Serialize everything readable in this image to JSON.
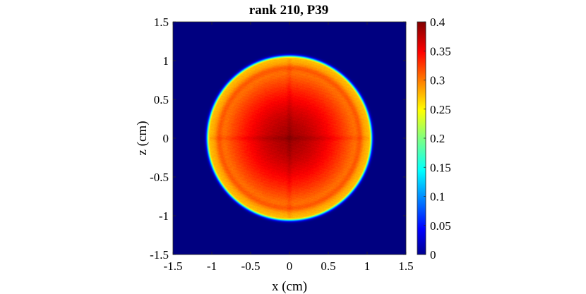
{
  "chart_data": {
    "type": "heatmap",
    "title": "rank 210, P39",
    "xlabel": "x (cm)",
    "ylabel": "z (cm)",
    "xlim": [
      -1.5,
      1.5
    ],
    "ylim": [
      -1.5,
      1.5
    ],
    "xticks": [
      -1.5,
      -1,
      -0.5,
      0,
      0.5,
      1,
      1.5
    ],
    "yticks": [
      -1.5,
      -1,
      -0.5,
      0,
      0.5,
      1,
      1.5
    ],
    "xtick_labels": [
      "-1.5",
      "-1",
      "-0.5",
      "0",
      "0.5",
      "1",
      "1.5"
    ],
    "ytick_labels": [
      "-1.5",
      "-1",
      "-0.5",
      "0",
      "0.5",
      "1",
      "1.5"
    ],
    "colorbar": {
      "colormap": "jet",
      "clim": [
        0,
        0.4
      ],
      "ticks": [
        0,
        0.05,
        0.1,
        0.15,
        0.2,
        0.25,
        0.3,
        0.35,
        0.4
      ],
      "tick_labels": [
        "0",
        "0.05",
        "0.1",
        "0.15",
        "0.2",
        "0.25",
        "0.3",
        "0.35",
        "0.4"
      ]
    },
    "field": {
      "description_shape": "disk",
      "center": [
        0,
        0
      ],
      "radius_cm": 1.03,
      "center_value": 0.385,
      "mid_radius_value": 0.32,
      "rim_value": 0.275,
      "outside_value": 0.0
    },
    "grid": false
  }
}
